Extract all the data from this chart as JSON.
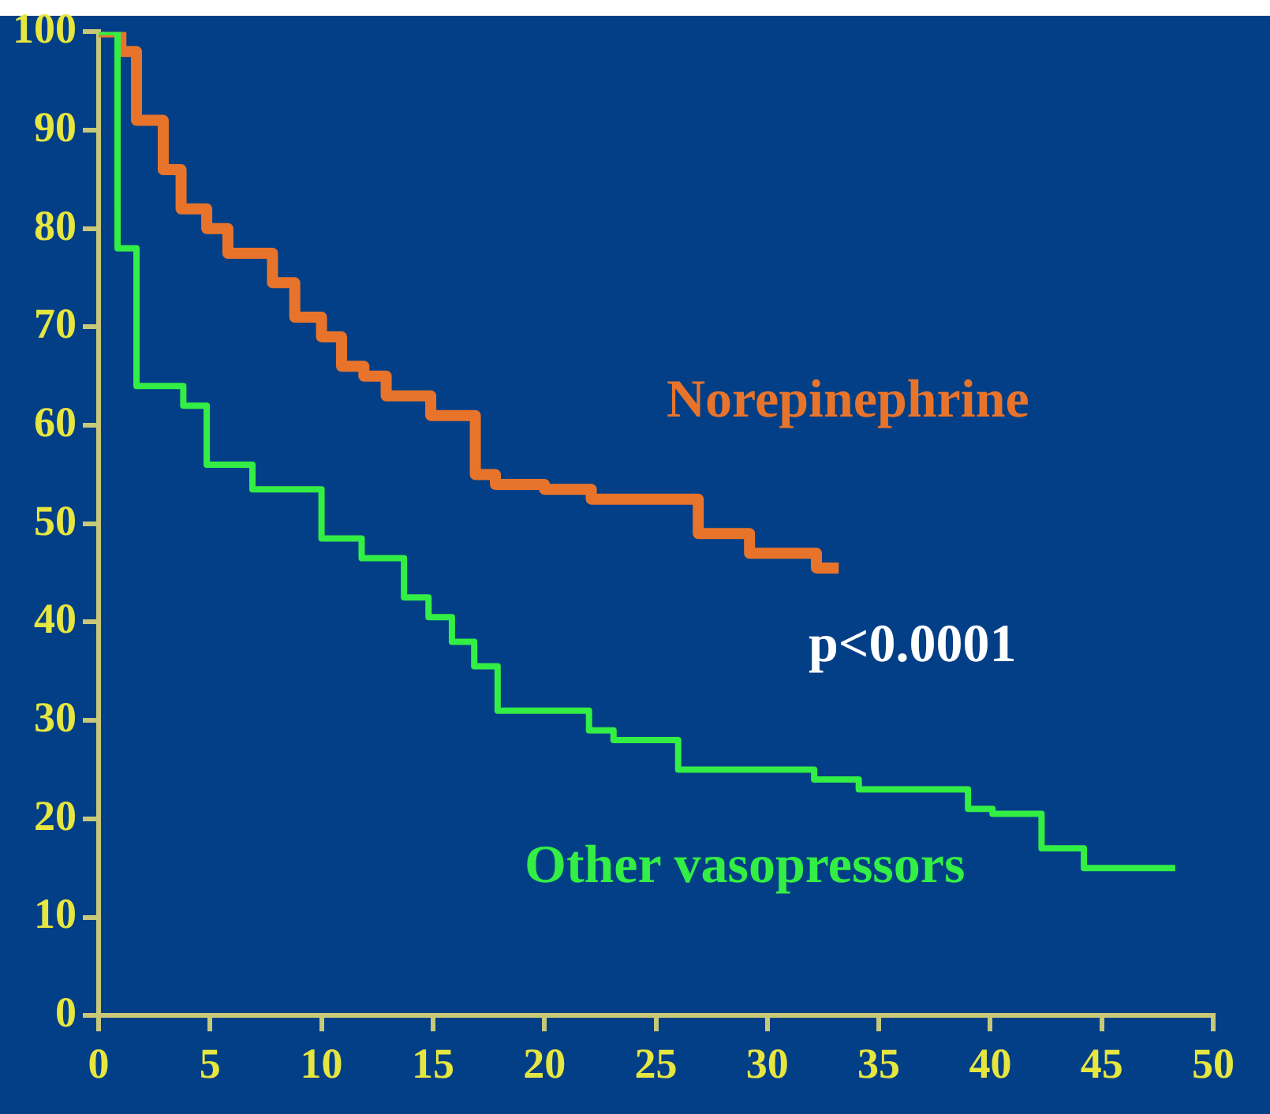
{
  "chart_data": {
    "type": "step",
    "xlim": [
      0,
      50
    ],
    "xticks": [
      0,
      5,
      10,
      15,
      20,
      25,
      30,
      35,
      40,
      45,
      50
    ],
    "ylim": [
      0,
      100
    ],
    "yticks": [
      0,
      10,
      20,
      30,
      40,
      50,
      60,
      70,
      80,
      90,
      100
    ],
    "grid": false,
    "legend": false,
    "marker": "none",
    "line_style": "solid",
    "annotations": [
      "p<0.0001"
    ],
    "series": [
      {
        "name": "Norepinephrine",
        "color": "#e8742c",
        "x": [
          0,
          1.0,
          1.7,
          2.9,
          3.7,
          4.85,
          5.8,
          7.8,
          8.8,
          10.0,
          10.9,
          11.9,
          12.9,
          14.9,
          16.9,
          17.8,
          20.0,
          22.1,
          26.9,
          29.2,
          32.2,
          33.2
        ],
        "values": [
          100,
          98,
          91,
          86,
          82,
          80,
          77.5,
          74.5,
          71,
          69,
          66,
          65,
          63,
          61,
          55,
          54,
          53.5,
          52.5,
          49,
          47,
          45.5,
          45.5
        ]
      },
      {
        "name": "Other vasopressors",
        "color": "#33ee44",
        "x": [
          0,
          0.85,
          1.7,
          3.8,
          4.85,
          6.9,
          10.0,
          11.8,
          13.7,
          14.8,
          15.85,
          16.85,
          17.9,
          22.0,
          23.1,
          26.0,
          32.1,
          34.1,
          39.0,
          40.1,
          42.3,
          44.2,
          48.3
        ],
        "values": [
          100,
          78,
          64,
          62,
          56,
          53.5,
          48.5,
          46.5,
          42.5,
          40.5,
          38,
          35.5,
          31,
          29,
          28,
          25,
          24,
          23,
          21,
          20.5,
          17,
          15,
          15
        ]
      }
    ]
  }
}
